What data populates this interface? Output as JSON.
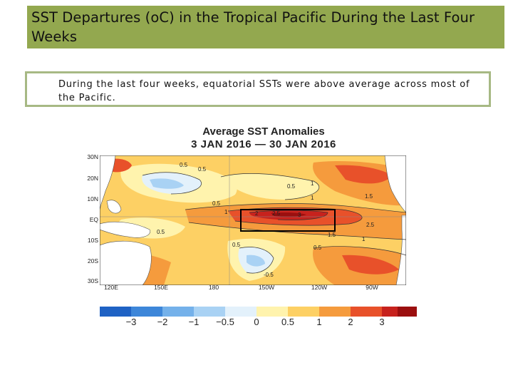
{
  "slide": {
    "title": "SST Departures (oC) in the Tropical Pacific During the Last Four Weeks",
    "summary": "During the last four weeks, equatorial SSTs were above average across most of the Pacific."
  },
  "map": {
    "title_line1": "Average SST Anomalies",
    "title_line2": "3 JAN 2016 — 30 JAN 2016",
    "lat_ticks": [
      "30N",
      "20N",
      "10N",
      "EQ",
      "10S",
      "20S",
      "30S"
    ],
    "lon_ticks": [
      "120E",
      "150E",
      "180",
      "150W",
      "120W",
      "90W"
    ],
    "contour_labels": [
      "0.5",
      "0.5",
      "0.5",
      "0.5",
      "1",
      "1",
      "1.5",
      "2",
      "2.5",
      "3",
      "2.5",
      "1.5",
      "1",
      "0.5",
      "0.5",
      "-0.5",
      "0.5",
      "1"
    ],
    "highlight_region": "equatorial central-eastern Pacific box",
    "colors": {
      "neg3": "#1f62c4",
      "neg2": "#3d86d9",
      "neg1": "#74b1ea",
      "neg05": "#a9d2f4",
      "zero": "#e3f1fb",
      "pos0": "#fff3ad",
      "pos05": "#fdd064",
      "pos1": "#f59b3d",
      "pos2": "#e8512a",
      "pos3": "#c7221d",
      "pos4": "#9b0f0f",
      "land": "#ffffff"
    }
  },
  "colorbar": {
    "labels": [
      "−3",
      "−2",
      "−1",
      "−0.5",
      "0",
      "0.5",
      "1",
      "2",
      "3"
    ],
    "colors": [
      "#1f62c4",
      "#3d86d9",
      "#74b1ea",
      "#a9d2f4",
      "#e3f1fb",
      "#fff3ad",
      "#fdd064",
      "#f59b3d",
      "#e8512a",
      "#c7221d",
      "#9b0f0f"
    ]
  }
}
